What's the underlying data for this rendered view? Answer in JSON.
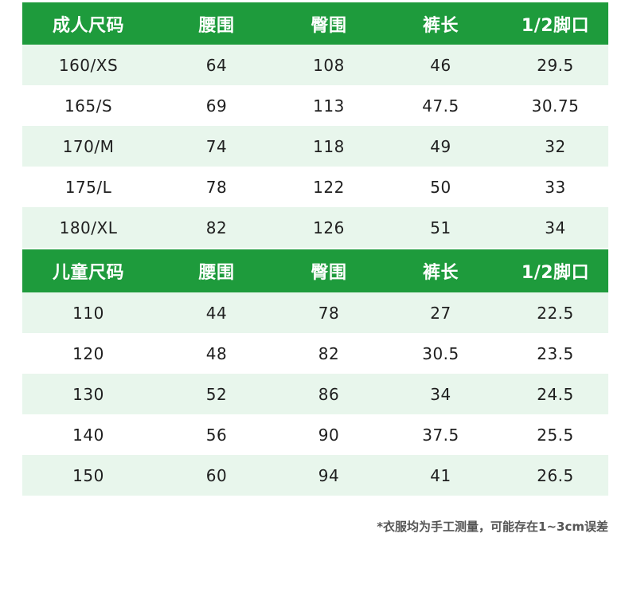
{
  "adult_table": {
    "headers": [
      "成人尺码",
      "腰围",
      "臀围",
      "裤长",
      "1/2脚口"
    ],
    "rows": [
      [
        "160/XS",
        "64",
        "108",
        "46",
        "29.5"
      ],
      [
        "165/S",
        "69",
        "113",
        "47.5",
        "30.75"
      ],
      [
        "170/M",
        "74",
        "118",
        "49",
        "32"
      ],
      [
        "175/L",
        "78",
        "122",
        "50",
        "33"
      ],
      [
        "180/XL",
        "82",
        "126",
        "51",
        "34"
      ]
    ]
  },
  "kids_table": {
    "headers": [
      "儿童尺码",
      "腰围",
      "臀围",
      "裤长",
      "1/2脚口"
    ],
    "rows": [
      [
        "110",
        "44",
        "78",
        "27",
        "22.5"
      ],
      [
        "120",
        "48",
        "82",
        "30.5",
        "23.5"
      ],
      [
        "130",
        "52",
        "86",
        "34",
        "24.5"
      ],
      [
        "140",
        "56",
        "90",
        "37.5",
        "25.5"
      ],
      [
        "150",
        "60",
        "94",
        "41",
        "26.5"
      ]
    ]
  },
  "footnote": "*衣服均为手工测量，可能存在1~3cm误差",
  "colors": {
    "header_background": "#1e9b3c",
    "header_text": "#ffffff",
    "shaded_row": "#e8f6ec",
    "plain_row": "#ffffff"
  }
}
